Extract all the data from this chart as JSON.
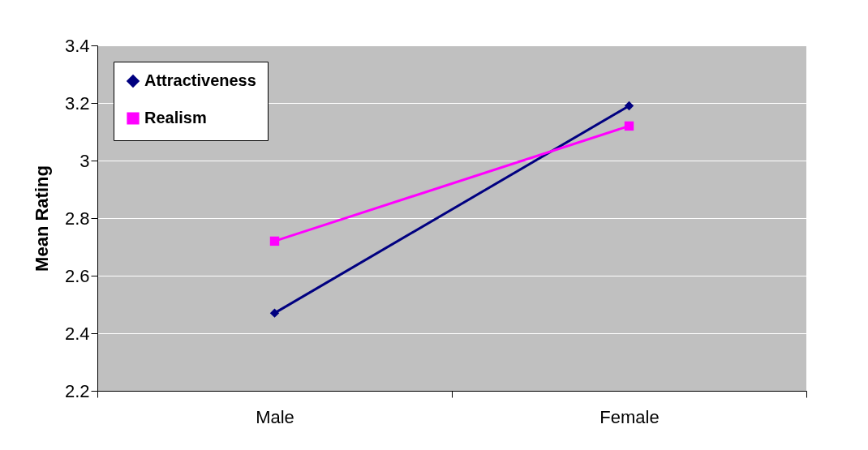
{
  "chart_data": {
    "type": "line",
    "ylabel": "Mean Rating",
    "categories": [
      "Male",
      "Female"
    ],
    "series": [
      {
        "name": "Attractiveness",
        "color": "#000080",
        "values": [
          2.47,
          3.19
        ],
        "marker": "diamond"
      },
      {
        "name": "Realism",
        "color": "#ff00ff",
        "values": [
          2.72,
          3.12
        ],
        "marker": "square"
      }
    ],
    "ylim": [
      2.2,
      3.4
    ],
    "yticks": [
      2.2,
      2.4,
      2.6,
      2.8,
      3,
      3.2,
      3.4
    ],
    "grid": "y",
    "legend": "top left",
    "line_style": "solid"
  }
}
